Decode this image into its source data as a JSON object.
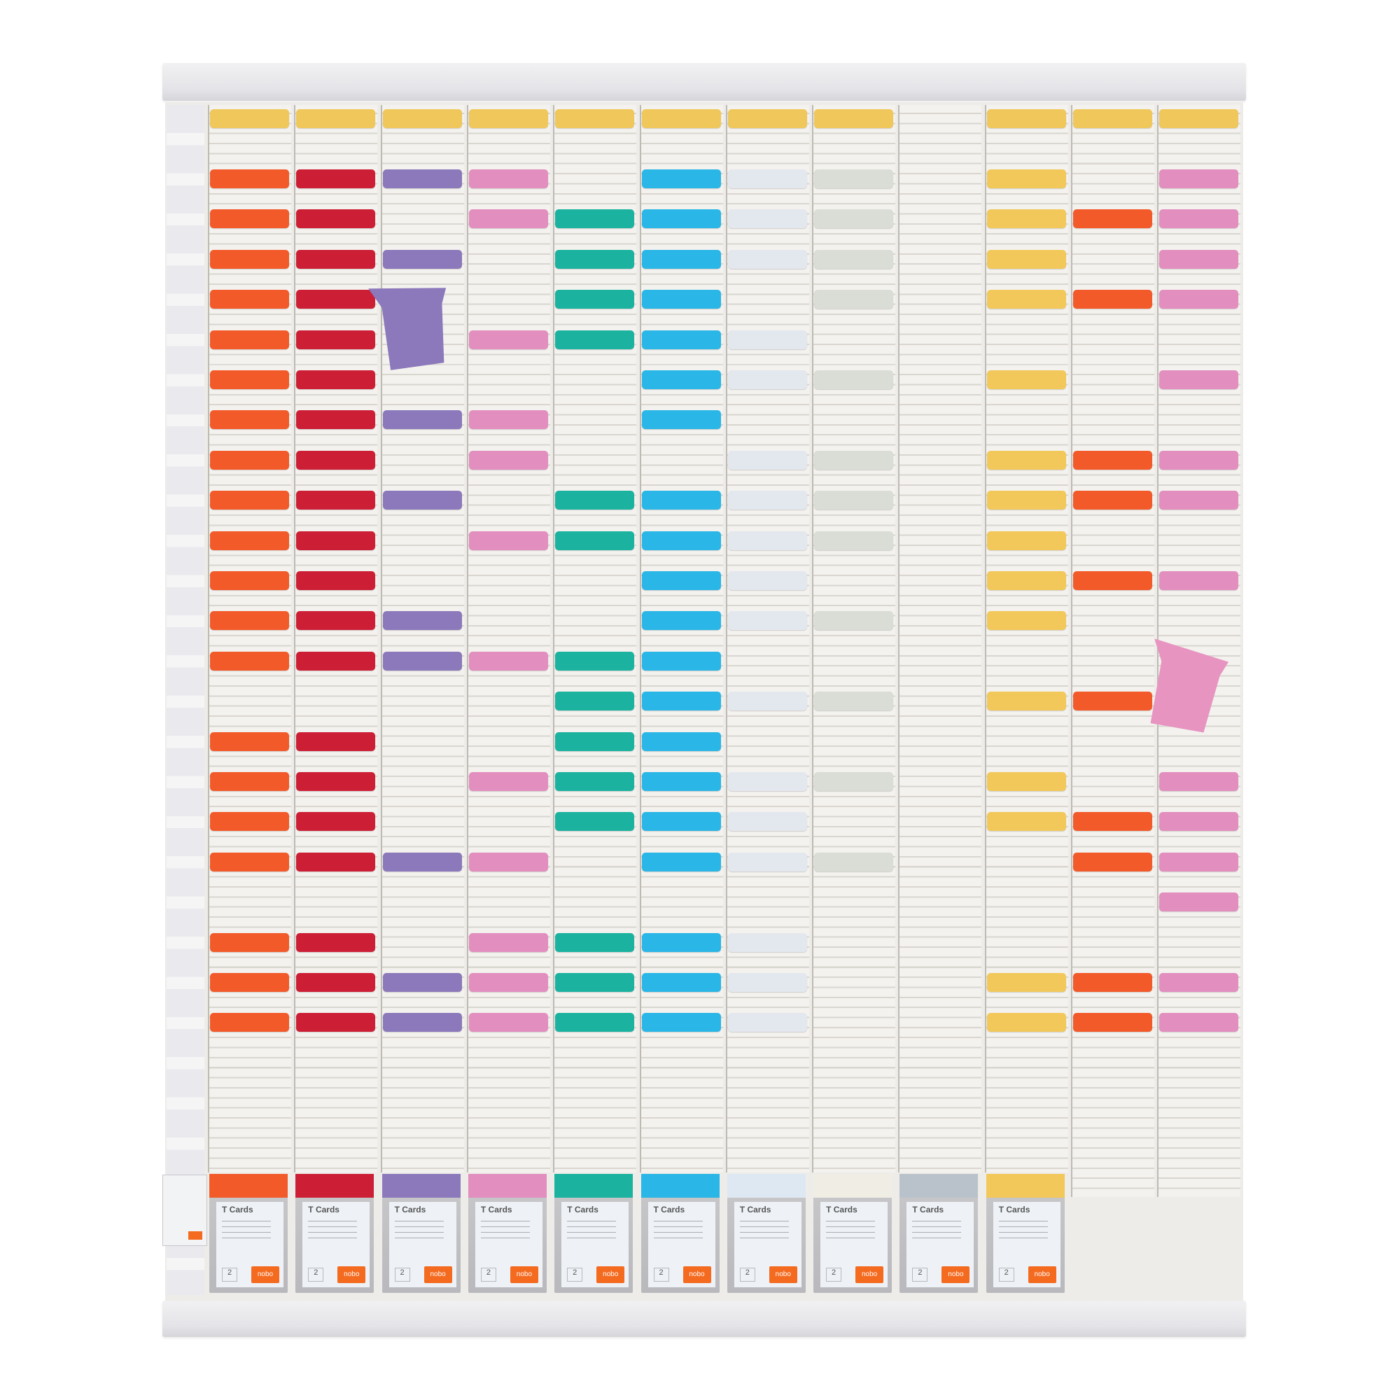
{
  "board": {
    "header_color": "#f0c75a",
    "columns": [
      {
        "color": "#f25a2a",
        "rows": [
          1,
          2,
          3,
          4,
          5,
          6,
          7,
          8,
          9,
          10,
          11,
          12,
          13,
          15,
          16,
          17,
          18,
          20,
          21,
          22
        ],
        "header": true,
        "box": true
      },
      {
        "color": "#cc1f36",
        "rows": [
          1,
          2,
          3,
          4,
          5,
          6,
          7,
          8,
          9,
          10,
          11,
          12,
          13,
          15,
          16,
          17,
          18,
          20,
          21,
          22
        ],
        "header": true,
        "box": true
      },
      {
        "color": "#8c79bb",
        "rows": [
          1,
          3,
          7,
          9,
          12,
          13,
          18,
          21,
          22
        ],
        "header": true,
        "box": true
      },
      {
        "color": "#e28ebf",
        "rows": [
          1,
          2,
          5,
          7,
          8,
          10,
          13,
          16,
          18,
          20,
          21,
          22
        ],
        "header": true,
        "box": true
      },
      {
        "color": "#1bb3a0",
        "rows": [
          2,
          3,
          4,
          5,
          9,
          10,
          13,
          14,
          15,
          16,
          17,
          20,
          21,
          22
        ],
        "header": true,
        "box": true
      },
      {
        "color": "#2ab6e6",
        "rows": [
          1,
          2,
          3,
          4,
          5,
          6,
          7,
          9,
          10,
          11,
          12,
          13,
          14,
          15,
          16,
          17,
          18,
          20,
          21,
          22
        ],
        "header": true,
        "box": true
      },
      {
        "color": "#e3e7ee",
        "rows": [
          1,
          2,
          3,
          5,
          6,
          8,
          9,
          10,
          11,
          12,
          14,
          16,
          17,
          18,
          20,
          21,
          22
        ],
        "header": true,
        "box": true,
        "box_color": "#dde8f2"
      },
      {
        "color": "#d9ddd5",
        "rows": [
          1,
          2,
          3,
          4,
          6,
          8,
          9,
          10,
          12,
          14,
          16,
          18
        ],
        "header": true,
        "box": true,
        "box_color": "#efede4"
      },
      {
        "color": "#eeeeee",
        "rows": [],
        "header": false,
        "box": true,
        "box_color": "#b9c2ca"
      },
      {
        "color": "#f2c85a",
        "rows": [
          1,
          2,
          3,
          4,
          6,
          8,
          9,
          10,
          11,
          12,
          14,
          16,
          17,
          21,
          22
        ],
        "header": true,
        "box": true
      },
      {
        "color": "#f25a2a",
        "rows": [
          2,
          4,
          8,
          9,
          11,
          14,
          17,
          18,
          21,
          22
        ],
        "header": true,
        "box": false
      },
      {
        "color": "#e28ebf",
        "rows": [
          1,
          2,
          3,
          4,
          6,
          8,
          9,
          11,
          16,
          17,
          18,
          19,
          21,
          22
        ],
        "header": true,
        "box": false
      }
    ],
    "loose_cards": [
      {
        "color": "#8c79bb",
        "column": 3,
        "row": 4,
        "angle": -8
      },
      {
        "color": "#e794c1",
        "column": 12,
        "row": 13,
        "angle": 10
      }
    ]
  },
  "card_box": {
    "title": "T Cards",
    "size_label": "2",
    "brand": "nobo"
  }
}
